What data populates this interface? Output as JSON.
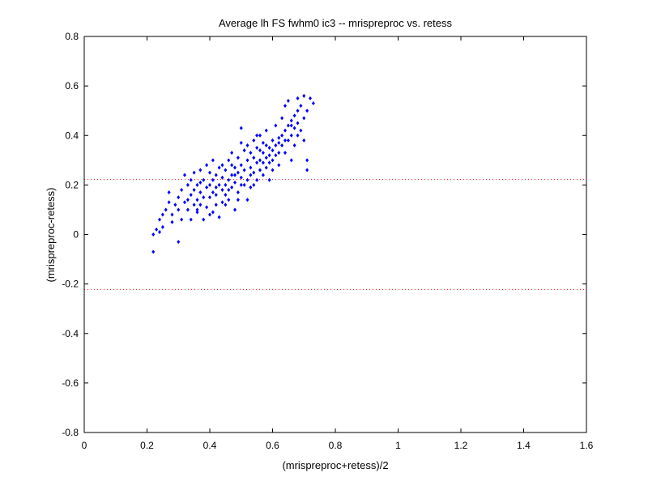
{
  "chart_data": {
    "type": "scatter",
    "title": "Average lh FS fwhm0 ic3 -- mrispreproc vs. retess",
    "xlabel": "(mrispreproc+retess)/2",
    "ylabel": "(mrispreproc-retess)",
    "xlim": [
      0,
      1.6
    ],
    "ylim": [
      -0.8,
      0.8
    ],
    "x_ticks": [
      "0",
      "0.2",
      "0.4",
      "0.6",
      "0.8",
      "1",
      "1.2",
      "1.4",
      "1.6"
    ],
    "y_ticks": [
      "-0.8",
      "-0.6",
      "-0.4",
      "-0.2",
      "0",
      "0.2",
      "0.4",
      "0.6",
      "0.8"
    ],
    "grid": false,
    "marker_color": "#0000ff",
    "reference_lines": [
      {
        "y": 0.222,
        "style": "dotted",
        "color": "#ff0000"
      },
      {
        "y": -0.222,
        "style": "dotted",
        "color": "#ff0000"
      }
    ],
    "points": [
      [
        0.22,
        -0.07
      ],
      [
        0.22,
        0.0
      ],
      [
        0.23,
        0.02
      ],
      [
        0.24,
        0.01
      ],
      [
        0.24,
        0.06
      ],
      [
        0.25,
        0.08
      ],
      [
        0.25,
        0.03
      ],
      [
        0.26,
        0.1
      ],
      [
        0.27,
        0.13
      ],
      [
        0.27,
        0.17
      ],
      [
        0.28,
        0.08
      ],
      [
        0.28,
        0.05
      ],
      [
        0.29,
        0.12
      ],
      [
        0.3,
        0.15
      ],
      [
        0.3,
        -0.03
      ],
      [
        0.3,
        0.1
      ],
      [
        0.31,
        0.18
      ],
      [
        0.31,
        0.06
      ],
      [
        0.32,
        0.24
      ],
      [
        0.32,
        0.13
      ],
      [
        0.33,
        0.2
      ],
      [
        0.33,
        0.1
      ],
      [
        0.34,
        0.16
      ],
      [
        0.34,
        0.06
      ],
      [
        0.34,
        0.22
      ],
      [
        0.35,
        0.12
      ],
      [
        0.35,
        0.25
      ],
      [
        0.35,
        0.18
      ],
      [
        0.36,
        0.14
      ],
      [
        0.36,
        0.2
      ],
      [
        0.36,
        0.09
      ],
      [
        0.37,
        0.17
      ],
      [
        0.37,
        0.26
      ],
      [
        0.37,
        0.12
      ],
      [
        0.38,
        0.22
      ],
      [
        0.38,
        0.15
      ],
      [
        0.38,
        0.06
      ],
      [
        0.39,
        0.19
      ],
      [
        0.39,
        0.28
      ],
      [
        0.39,
        0.11
      ],
      [
        0.4,
        0.2
      ],
      [
        0.4,
        0.15
      ],
      [
        0.4,
        0.25
      ],
      [
        0.41,
        0.09
      ],
      [
        0.41,
        0.22
      ],
      [
        0.41,
        0.3
      ],
      [
        0.42,
        0.16
      ],
      [
        0.42,
        0.24
      ],
      [
        0.42,
        0.12
      ],
      [
        0.43,
        0.2
      ],
      [
        0.43,
        0.27
      ],
      [
        0.43,
        0.07
      ],
      [
        0.44,
        0.18
      ],
      [
        0.44,
        0.23
      ],
      [
        0.44,
        0.13
      ],
      [
        0.45,
        0.26
      ],
      [
        0.45,
        0.2
      ],
      [
        0.45,
        0.16
      ],
      [
        0.46,
        0.3
      ],
      [
        0.46,
        0.22
      ],
      [
        0.46,
        0.14
      ],
      [
        0.47,
        0.24
      ],
      [
        0.47,
        0.19
      ],
      [
        0.47,
        0.33
      ],
      [
        0.48,
        0.21
      ],
      [
        0.48,
        0.27
      ],
      [
        0.48,
        0.1
      ],
      [
        0.49,
        0.25
      ],
      [
        0.49,
        0.17
      ],
      [
        0.49,
        0.31
      ],
      [
        0.5,
        0.23
      ],
      [
        0.5,
        0.28
      ],
      [
        0.5,
        0.43
      ],
      [
        0.5,
        0.37
      ],
      [
        0.51,
        0.2
      ],
      [
        0.51,
        0.26
      ],
      [
        0.51,
        0.34
      ],
      [
        0.52,
        0.22
      ],
      [
        0.52,
        0.3
      ],
      [
        0.52,
        0.14
      ],
      [
        0.53,
        0.27
      ],
      [
        0.53,
        0.33
      ],
      [
        0.53,
        0.19
      ],
      [
        0.54,
        0.25
      ],
      [
        0.54,
        0.31
      ],
      [
        0.54,
        0.38
      ],
      [
        0.55,
        0.29
      ],
      [
        0.55,
        0.22
      ],
      [
        0.55,
        0.35
      ],
      [
        0.56,
        0.3
      ],
      [
        0.56,
        0.26
      ],
      [
        0.56,
        0.4
      ],
      [
        0.57,
        0.33
      ],
      [
        0.57,
        0.24
      ],
      [
        0.57,
        0.37
      ],
      [
        0.58,
        0.31
      ],
      [
        0.58,
        0.27
      ],
      [
        0.58,
        0.42
      ],
      [
        0.59,
        0.35
      ],
      [
        0.59,
        0.29
      ],
      [
        0.59,
        0.22
      ],
      [
        0.6,
        0.34
      ],
      [
        0.6,
        0.38
      ],
      [
        0.6,
        0.3
      ],
      [
        0.61,
        0.36
      ],
      [
        0.61,
        0.32
      ],
      [
        0.61,
        0.44
      ],
      [
        0.62,
        0.39
      ],
      [
        0.62,
        0.33
      ],
      [
        0.62,
        0.28
      ],
      [
        0.63,
        0.4
      ],
      [
        0.63,
        0.36
      ],
      [
        0.63,
        0.47
      ],
      [
        0.64,
        0.42
      ],
      [
        0.64,
        0.33
      ],
      [
        0.64,
        0.52
      ],
      [
        0.65,
        0.44
      ],
      [
        0.65,
        0.38
      ],
      [
        0.65,
        0.54
      ],
      [
        0.66,
        0.46
      ],
      [
        0.66,
        0.4
      ],
      [
        0.66,
        0.3
      ],
      [
        0.67,
        0.48
      ],
      [
        0.67,
        0.43
      ],
      [
        0.67,
        0.36
      ],
      [
        0.68,
        0.5
      ],
      [
        0.68,
        0.45
      ],
      [
        0.68,
        0.55
      ],
      [
        0.69,
        0.42
      ],
      [
        0.69,
        0.52
      ],
      [
        0.7,
        0.56
      ],
      [
        0.7,
        0.47
      ],
      [
        0.7,
        0.38
      ],
      [
        0.71,
        0.5
      ],
      [
        0.71,
        0.3
      ],
      [
        0.71,
        0.26
      ],
      [
        0.72,
        0.55
      ],
      [
        0.73,
        0.53
      ],
      [
        0.36,
        0.1
      ],
      [
        0.4,
        0.08
      ],
      [
        0.42,
        0.19
      ],
      [
        0.44,
        0.28
      ],
      [
        0.46,
        0.18
      ],
      [
        0.48,
        0.24
      ],
      [
        0.5,
        0.2
      ],
      [
        0.52,
        0.36
      ],
      [
        0.54,
        0.2
      ],
      [
        0.56,
        0.34
      ],
      [
        0.58,
        0.36
      ],
      [
        0.6,
        0.26
      ],
      [
        0.33,
        0.14
      ],
      [
        0.37,
        0.21
      ],
      [
        0.41,
        0.17
      ],
      [
        0.45,
        0.12
      ],
      [
        0.47,
        0.28
      ],
      [
        0.49,
        0.14
      ],
      [
        0.53,
        0.24
      ],
      [
        0.55,
        0.4
      ],
      [
        0.57,
        0.29
      ],
      [
        0.59,
        0.32
      ],
      [
        0.62,
        0.37
      ],
      [
        0.64,
        0.38
      ],
      [
        0.66,
        0.44
      ],
      [
        0.68,
        0.4
      ]
    ]
  }
}
